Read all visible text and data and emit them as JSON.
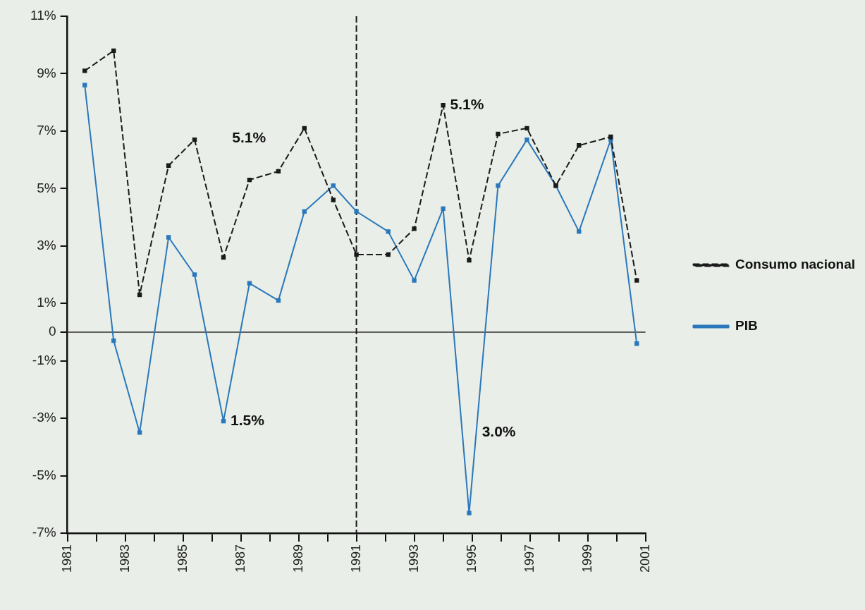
{
  "chart_data": {
    "type": "line",
    "x": [
      1981.6,
      1982.6,
      1983.5,
      1984.5,
      1985.4,
      1986.4,
      1987.3,
      1988.3,
      1989.2,
      1990.2,
      1991.0,
      1992.1,
      1993.0,
      1994.0,
      1994.9,
      1995.9,
      1996.9,
      1997.9,
      1998.7,
      1999.8,
      2000.7
    ],
    "xlim": [
      1981,
      2001
    ],
    "xticks": [
      1981,
      {
        "value": 1982,
        "label": null
      },
      1983,
      {
        "value": 1984,
        "label": null
      },
      1985,
      {
        "value": 1986,
        "label": null
      },
      1987,
      {
        "value": 1988,
        "label": null
      },
      1989,
      {
        "value": 1990,
        "label": null
      },
      1991,
      {
        "value": 1992,
        "label": null
      },
      1993,
      {
        "value": 1994,
        "label": null
      },
      1995,
      {
        "value": 1996,
        "label": null
      },
      1997,
      {
        "value": 1998,
        "label": null
      },
      1999,
      {
        "value": 2000,
        "label": null
      },
      2001
    ],
    "ylim": [
      -7,
      11
    ],
    "yticks": [
      {
        "value": -7,
        "label": "-7%"
      },
      {
        "value": -5,
        "label": "-5%"
      },
      {
        "value": -3,
        "label": "-3%"
      },
      {
        "value": -1,
        "label": "-1%"
      },
      0,
      {
        "value": 1,
        "label": "1%"
      },
      {
        "value": 3,
        "label": "3%"
      },
      {
        "value": 5,
        "label": "5%"
      },
      {
        "value": 7,
        "label": "7%"
      },
      {
        "value": 9,
        "label": "9%"
      },
      {
        "value": 11,
        "label": "11%"
      }
    ],
    "grid": false,
    "legend": "right",
    "marker": "square",
    "series": [
      {
        "name": "Consumo nacional",
        "color": "#1a1a1a",
        "line_style": "dashed",
        "values": [
          9.1,
          9.8,
          1.3,
          5.8,
          6.7,
          2.6,
          5.3,
          5.6,
          7.1,
          4.6,
          2.7,
          2.7,
          3.6,
          7.9,
          2.5,
          6.9,
          7.1,
          5.1,
          6.5,
          6.8,
          1.8
        ]
      },
      {
        "name": "PIB",
        "color": "#2a78bb",
        "line_style": "solid",
        "values": [
          8.6,
          -0.3,
          -3.5,
          3.3,
          2.0,
          -3.1,
          1.7,
          1.1,
          4.2,
          5.1,
          4.2,
          3.5,
          1.8,
          4.3,
          -6.3,
          5.1,
          6.7,
          5.1,
          3.5,
          6.7,
          -0.4
        ]
      }
    ],
    "ref_lines": [
      {
        "axis": "y",
        "value": 0,
        "color": "#333333",
        "line_style": "solid"
      },
      {
        "axis": "x",
        "value": 1991,
        "color": "#1a1a1a",
        "line_style": "dashed"
      }
    ],
    "annotations": [
      "5.1%",
      {
        "text": "5.1%",
        "x": 1994.0,
        "y": 7.9
      },
      {
        "text": "1.5%",
        "x": 1986.4,
        "y": -3.1
      },
      {
        "text": "3.0%",
        "x": 1995.1,
        "y": -3.5
      }
    ]
  }
}
